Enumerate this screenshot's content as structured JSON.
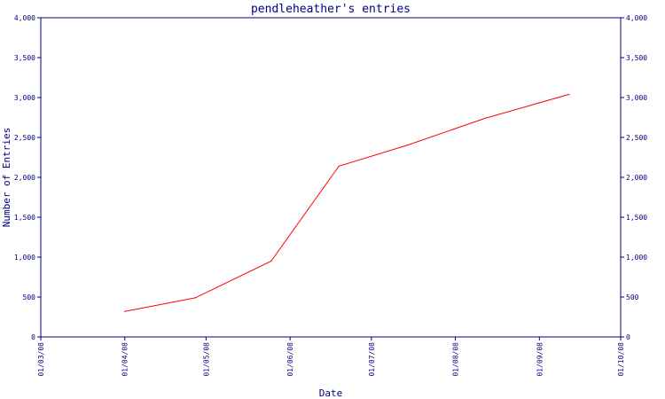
{
  "chart_data": {
    "type": "line",
    "title": "pendleheather's entries",
    "xlabel": "Date",
    "ylabel": "Number of Entries",
    "ylim": [
      0,
      4000
    ],
    "xlim": [
      "2008-03-01",
      "2008-10-01"
    ],
    "yticks": [
      0,
      500,
      1000,
      1500,
      2000,
      2500,
      3000,
      3500,
      4000
    ],
    "ytick_labels": [
      "0",
      "500",
      "1,000",
      "1,500",
      "2,000",
      "2,500",
      "3,000",
      "3,500",
      "4,000"
    ],
    "xticks": [
      "2008-03-01",
      "2008-04-01",
      "2008-05-01",
      "2008-06-01",
      "2008-07-01",
      "2008-08-01",
      "2008-09-01",
      "2008-10-01"
    ],
    "xtick_labels": [
      "01/03/08",
      "01/04/08",
      "01/05/08",
      "01/06/08",
      "01/07/08",
      "01/08/08",
      "01/09/08",
      "01/10/08"
    ],
    "grid": false,
    "legend": "none",
    "colors": {
      "axis": "#000080",
      "line": "#ff0000",
      "background": "#ffffff"
    },
    "series": [
      {
        "x": [
          "2008-04-01",
          "2008-04-27",
          "2008-05-25",
          "2008-06-19",
          "2008-07-14",
          "2008-08-12",
          "2008-09-12"
        ],
        "values": [
          320,
          490,
          950,
          2140,
          2400,
          2740,
          3040
        ]
      }
    ]
  }
}
